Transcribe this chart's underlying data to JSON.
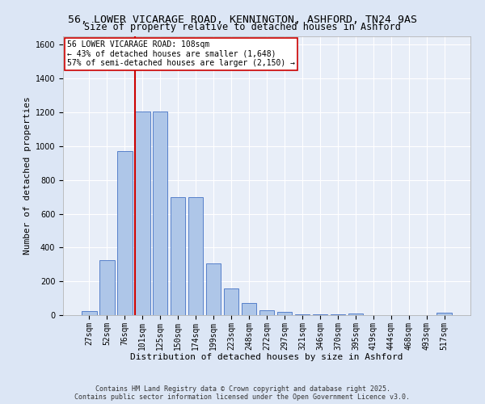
{
  "title_line1": "56, LOWER VICARAGE ROAD, KENNINGTON, ASHFORD, TN24 9AS",
  "title_line2": "Size of property relative to detached houses in Ashford",
  "xlabel": "Distribution of detached houses by size in Ashford",
  "ylabel": "Number of detached properties",
  "categories": [
    "27sqm",
    "52sqm",
    "76sqm",
    "101sqm",
    "125sqm",
    "150sqm",
    "174sqm",
    "199sqm",
    "223sqm",
    "248sqm",
    "272sqm",
    "297sqm",
    "321sqm",
    "346sqm",
    "370sqm",
    "395sqm",
    "419sqm",
    "444sqm",
    "468sqm",
    "493sqm",
    "517sqm"
  ],
  "values": [
    25,
    325,
    970,
    1205,
    1205,
    700,
    700,
    305,
    160,
    70,
    28,
    18,
    5,
    5,
    5,
    8,
    0,
    0,
    0,
    0,
    12
  ],
  "bar_color": "#aec6e8",
  "bar_edge_color": "#4472c4",
  "vline_index": 3,
  "vline_color": "#cc0000",
  "annotation_text": "56 LOWER VICARAGE ROAD: 108sqm\n← 43% of detached houses are smaller (1,648)\n57% of semi-detached houses are larger (2,150) →",
  "annotation_box_color": "#ffffff",
  "annotation_box_edge": "#cc0000",
  "ylim_max": 1650,
  "yticks": [
    0,
    200,
    400,
    600,
    800,
    1000,
    1200,
    1400,
    1600
  ],
  "background_color": "#dce6f5",
  "plot_bg_color": "#e8eef8",
  "grid_color": "#ffffff",
  "footer_line1": "Contains HM Land Registry data © Crown copyright and database right 2025.",
  "footer_line2": "Contains public sector information licensed under the Open Government Licence v3.0.",
  "title_fontsize": 9.5,
  "subtitle_fontsize": 8.5,
  "axis_label_fontsize": 8,
  "tick_fontsize": 7,
  "annotation_fontsize": 7,
  "footer_fontsize": 6
}
